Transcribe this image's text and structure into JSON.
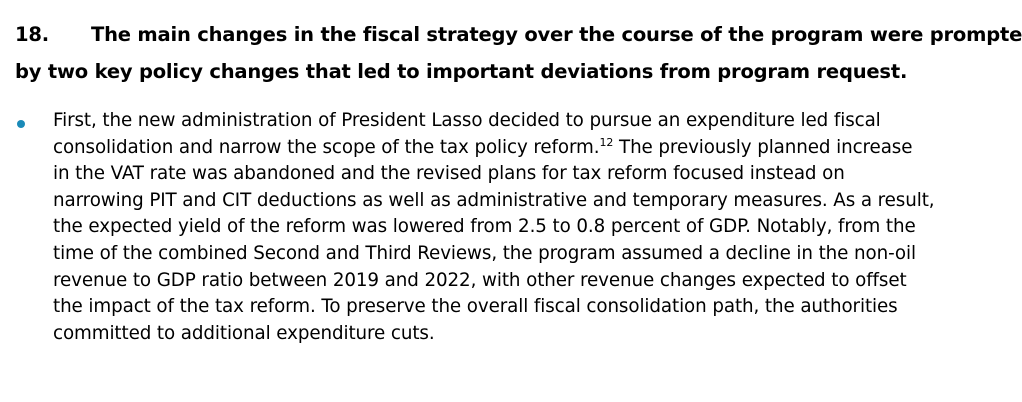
{
  "paragraph": {
    "number": "18.",
    "heading_lines": [
      "The main changes in the fiscal strategy over the course of the program were prompted",
      "by two key policy changes that led to important deviations from program request."
    ],
    "bullet_color": "#1a8ab8",
    "bullet_lines": [
      "First, the new administration of President Lasso decided to pursue an expenditure led fiscal",
      "consolidation and narrow the scope of the tax policy reform.",
      "in the VAT rate was abandoned and the revised plans for tax reform focused instead on",
      "narrowing PIT and CIT deductions as well as administrative and temporary measures. As a result,",
      "the expected yield of the reform was lowered from 2.5 to 0.8 percent of GDP. Notably, from the",
      "time of the combined Second and Third Reviews, the program assumed a decline in the non-oil",
      "revenue to GDP ratio between 2019 and 2022, with other revenue changes expected to offset",
      "the impact of the tax reform. To preserve the overall fiscal consolidation path, the authorities",
      "committed to additional expenditure cuts."
    ],
    "footnote_ref": "12",
    "line2_tail": " The previously planned increase"
  }
}
